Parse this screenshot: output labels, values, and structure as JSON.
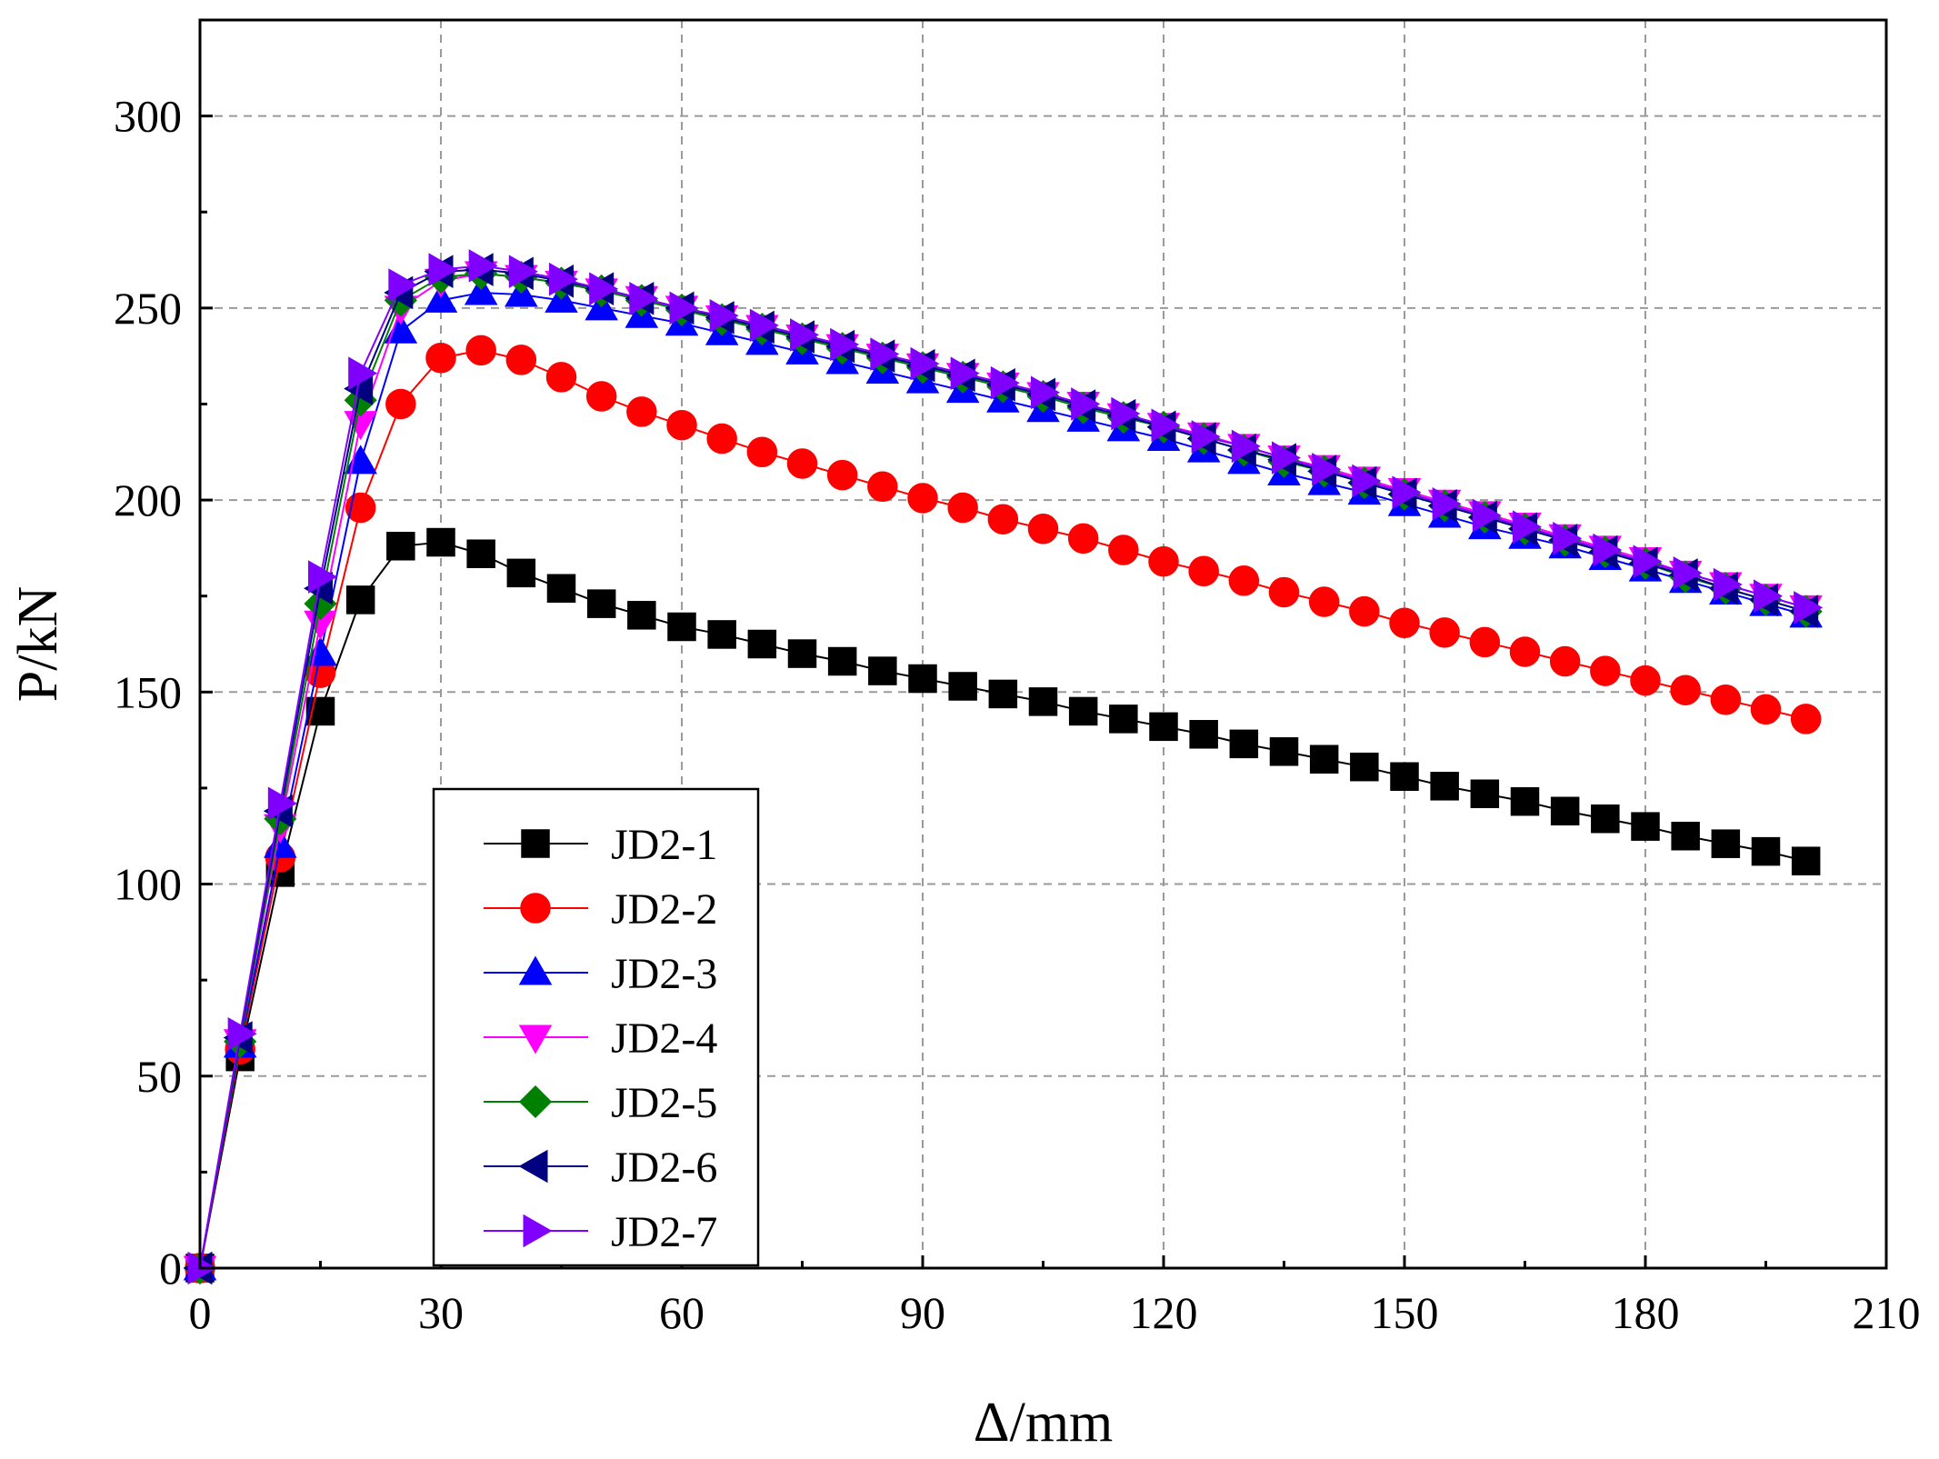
{
  "chart_data": {
    "type": "line",
    "title": "",
    "xlabel": "Δ/mm",
    "ylabel": "P/kN",
    "xlim": [
      0,
      210
    ],
    "ylim": [
      0,
      325
    ],
    "xticks": [
      0,
      30,
      60,
      90,
      120,
      150,
      180,
      210
    ],
    "yticks": [
      0,
      50,
      100,
      150,
      200,
      250,
      300
    ],
    "grid": true,
    "legend_position": "lower-left",
    "x": [
      0,
      5,
      10,
      15,
      20,
      25,
      30,
      35,
      40,
      45,
      50,
      55,
      60,
      65,
      70,
      75,
      80,
      85,
      90,
      95,
      100,
      105,
      110,
      115,
      120,
      125,
      130,
      135,
      140,
      145,
      150,
      155,
      160,
      165,
      170,
      175,
      180,
      185,
      190,
      195,
      200
    ],
    "series": [
      {
        "name": "JD2-1",
        "color": "#000000",
        "marker": "square",
        "values": [
          0,
          55,
          103,
          145,
          174,
          188,
          189,
          186,
          181,
          177,
          173,
          170,
          167,
          165,
          162.5,
          160,
          158,
          155.5,
          153.5,
          151.5,
          149.5,
          147.5,
          145,
          143,
          141,
          139,
          136.5,
          134.5,
          132.5,
          130.5,
          128,
          125.5,
          123.5,
          121.5,
          119,
          117,
          115,
          112.5,
          110.5,
          108.5,
          106
        ]
      },
      {
        "name": "JD2-2",
        "color": "#ff0000",
        "marker": "circle",
        "values": [
          0,
          57,
          107,
          155,
          198,
          225,
          237,
          239,
          236.5,
          232,
          227,
          223,
          219.5,
          216,
          212.5,
          209.5,
          206.5,
          203.5,
          200.5,
          198,
          195,
          192.5,
          190,
          187,
          184,
          181.5,
          179,
          176,
          173.5,
          171,
          168,
          165.5,
          163,
          160.5,
          158,
          155.5,
          153,
          150.5,
          148,
          145.5,
          143
        ]
      },
      {
        "name": "JD2-3",
        "color": "#0000ff",
        "marker": "triangle-up",
        "values": [
          0,
          58,
          110,
          160,
          210,
          244,
          252,
          254,
          253.5,
          252,
          250,
          248,
          246,
          243.5,
          241,
          238.5,
          236,
          233.5,
          231,
          228.5,
          226,
          223.5,
          221,
          218.5,
          216,
          213,
          210,
          207,
          204.5,
          202,
          199,
          196,
          193,
          190.5,
          188,
          185,
          182,
          179,
          176,
          173,
          170
        ]
      },
      {
        "name": "JD2-4",
        "color": "#ff00ff",
        "marker": "triangle-down",
        "values": [
          0,
          59,
          115,
          168,
          220,
          250,
          257,
          259,
          258,
          256.5,
          254.5,
          252.5,
          250,
          247.5,
          245,
          242.5,
          240,
          237.5,
          235,
          232.5,
          230,
          227.5,
          225,
          222,
          219.5,
          217,
          214,
          211,
          208.5,
          205.5,
          202.5,
          199.5,
          196.5,
          193.5,
          190.5,
          187.5,
          184.5,
          181,
          178,
          175,
          172
        ]
      },
      {
        "name": "JD2-5",
        "color": "#008000",
        "marker": "diamond",
        "values": [
          0,
          59,
          117,
          173,
          226,
          252,
          258,
          259,
          258,
          256.5,
          254.5,
          252,
          249.5,
          247,
          244.5,
          242,
          239.5,
          237,
          234.5,
          232,
          229.5,
          227,
          224,
          221.5,
          219,
          216,
          213,
          210,
          207.5,
          204.5,
          201.5,
          198.5,
          195.5,
          192.5,
          189.5,
          186.5,
          183.5,
          180,
          177,
          174,
          171
        ]
      },
      {
        "name": "JD2-6",
        "color": "#000080",
        "marker": "triangle-left",
        "values": [
          0,
          60,
          119,
          177,
          229,
          254,
          259.5,
          260,
          259,
          257,
          255,
          252.5,
          250,
          247.5,
          245,
          242.5,
          240,
          237.5,
          235,
          232.5,
          230,
          227.5,
          224.5,
          222,
          219,
          216,
          213,
          210.5,
          207.5,
          204.5,
          201.5,
          198.5,
          195.5,
          192.5,
          189.5,
          186.5,
          183.5,
          180.5,
          177,
          174,
          171
        ]
      },
      {
        "name": "JD2-7",
        "color": "#8000ff",
        "marker": "triangle-right",
        "values": [
          0,
          61,
          121,
          180,
          233,
          256,
          260,
          261,
          259.5,
          257.5,
          255,
          252.5,
          250,
          248,
          245.5,
          243,
          240.5,
          238,
          235.5,
          233,
          230.5,
          228,
          225,
          222.5,
          219.5,
          216.5,
          214,
          211,
          208,
          205,
          202,
          199,
          196,
          193,
          190,
          187,
          184,
          181,
          178,
          175,
          172
        ]
      }
    ]
  }
}
